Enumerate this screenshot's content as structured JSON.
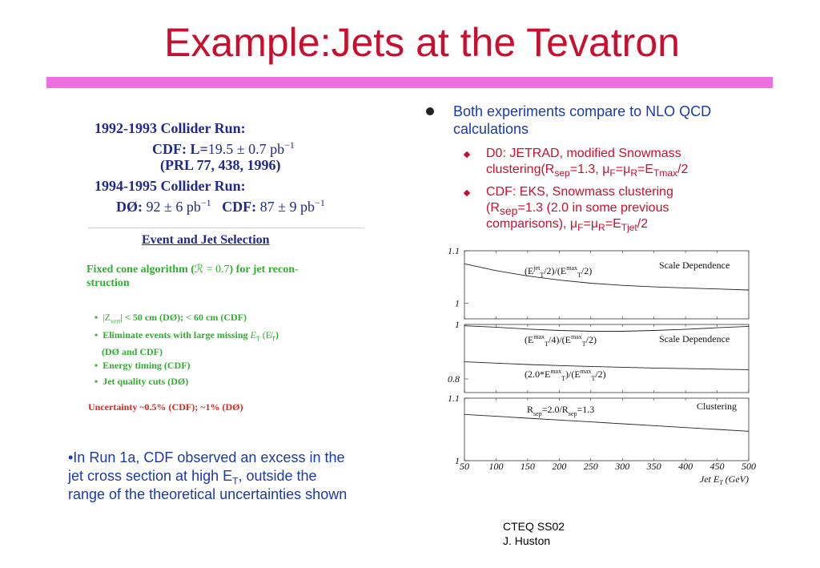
{
  "slide": {
    "title": "Example:Jets at the Tevatron"
  },
  "scan": {
    "run1": "1992-1993 Collider Run:",
    "cdf1_label": "CDF: L=",
    "cdf1_value": "19.5 ± 0.7 pb",
    "cdf1_exp": "−1",
    "prl": "(PRL 77, 438, 1996)",
    "run2": "1994-1995 Collider Run:",
    "d0_label": "DØ:",
    "d0_value": "92 ± 6 pb",
    "d0_exp": "−1",
    "cdf2_label": "CDF:",
    "cdf2_value": "87 ± 9 pb",
    "cdf2_exp": "−1",
    "selection_heading": "Event and Jet Selection",
    "cone_line1_a": "Fixed cone algorithm (",
    "cone_r": "ℛ = 0.7",
    "cone_line1_b": ") for jet recon-",
    "cone_line2": "struction",
    "bullet1_math": "|Z",
    "bullet1_sub": "vert",
    "bullet1_rest": "| < 50 cm (DØ); < 60 cm (CDF)",
    "bullet2_text": "Eliminate events with large missing ",
    "bullet2_math": "E",
    "bullet2_sub": "T",
    "bullet2_paren": " (E̸",
    "bullet2_paren_sub": "T",
    "bullet2_close": ")",
    "bullet2_line2": "(DØ and CDF)",
    "bullet3": "Energy timing (CDF)",
    "bullet4": "Jet quality cuts (DØ)",
    "uncertainty": "Uncertainty ~0.5% (CDF); ~1% (DØ)"
  },
  "bullets": {
    "main_line1": "Both experiments compare to NLO QCD",
    "main_line2": "calculations",
    "sub1_line1": "D0: JETRAD, modified Snowmass",
    "sub1_line2_a": "clustering(R",
    "sub1_line2_sub": "sep",
    "sub1_line2_b": "=1.3, μ",
    "sub1_line2_sub2": "F",
    "sub1_line2_c": "=μ",
    "sub1_line2_sub3": "R",
    "sub1_line2_d": "=E",
    "sub1_line2_sub4": "Tmax",
    "sub1_line2_e": "/2",
    "sub2_line1": "CDF: EKS, Snowmass clustering",
    "sub2_line2_a": "(R",
    "sub2_line2_sub": "sep",
    "sub2_line2_b": "=1.3 (2.0 in some previous",
    "sub2_line3_a": "comparisons), μ",
    "sub2_line3_sub": "F",
    "sub2_line3_b": "=μ",
    "sub2_line3_sub2": "R",
    "sub2_line3_c": "=E",
    "sub2_line3_sub3": "Tjet",
    "sub2_line3_d": "/2"
  },
  "note": {
    "line1": "•In Run 1a, CDF observed an excess in the",
    "line2_a": "jet cross section at high E",
    "line2_sub": "T",
    "line2_b": ", outside the",
    "line3": "range of the theoretical uncertainties shown"
  },
  "footer": {
    "line1": "CTEQ SS02",
    "line2": "J. Huston"
  },
  "chart_data": {
    "type": "line",
    "x": [
      50,
      100,
      150,
      200,
      250,
      300,
      350,
      400,
      450,
      500
    ],
    "xticks": [
      "50",
      "100",
      "150",
      "200",
      "250",
      "300",
      "350",
      "400",
      "450",
      "500"
    ],
    "xlabel": "Jet E",
    "xlabel_sub": "T",
    "xlabel_unit": " (GeV)",
    "xlim": [
      50,
      500
    ],
    "panels": [
      {
        "title": "Scale Dependence",
        "ylim": [
          0.97,
          1.1
        ],
        "yticks": [
          {
            "v": 1.1,
            "label": "1.1"
          },
          {
            "v": 1.0,
            "label": "1"
          }
        ],
        "series": [
          {
            "label_main": "(E",
            "label_sup": "jet",
            "label_sub": "T",
            "label_mid": "/2)/(E",
            "label_sup2": "max",
            "label_sub2": "T",
            "label_end": "/2)",
            "values": [
              1.075,
              1.062,
              1.052,
              1.044,
              1.038,
              1.034,
              1.031,
              1.029,
              1.027,
              1.025
            ]
          }
        ]
      },
      {
        "title": "Scale Dependence",
        "ylim": [
          0.75,
          1.0
        ],
        "yticks": [
          {
            "v": 1.0,
            "label": "1"
          },
          {
            "v": 0.8,
            "label": "0.8"
          }
        ],
        "series": [
          {
            "label_main": "(E",
            "label_sup": "max",
            "label_sub": "T",
            "label_mid": "/4)/(E",
            "label_sup2": "max",
            "label_sub2": "T",
            "label_end": "/2)",
            "values": [
              0.995,
              0.99,
              0.983,
              0.978,
              0.975,
              0.975,
              0.978,
              0.982,
              0.988,
              0.993
            ]
          },
          {
            "label_main": "(2.0*E",
            "label_sup": "max",
            "label_sub": "T",
            "label_mid": ")/(E",
            "label_sup2": "max",
            "label_sub2": "T",
            "label_end": "/2)",
            "values": [
              0.863,
              0.858,
              0.853,
              0.849,
              0.846,
              0.843,
              0.84,
              0.838,
              0.836,
              0.834
            ]
          }
        ]
      },
      {
        "title": "Clustering",
        "ylim": [
          1.0,
          1.1
        ],
        "yticks": [
          {
            "v": 1.1,
            "label": "1.1"
          },
          {
            "v": 1.0,
            "label": "1"
          }
        ],
        "series": [
          {
            "label_main": "R",
            "label_sub": "sep",
            "label_mid": "=2.0/R",
            "label_sub2": "sep",
            "label_end": "=1.3",
            "values": [
              1.074,
              1.071,
              1.068,
              1.065,
              1.062,
              1.059,
              1.056,
              1.053,
              1.05,
              1.047
            ]
          }
        ]
      }
    ]
  }
}
